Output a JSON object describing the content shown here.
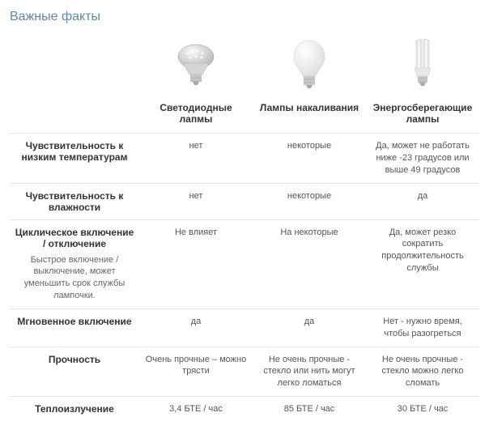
{
  "title": "Важные факты",
  "columns": [
    {
      "label": "Светодиодные лапмы",
      "icon": "led-bulb-icon"
    },
    {
      "label": "Лампы накаливания",
      "icon": "incandescent-bulb-icon"
    },
    {
      "label": "Энергосберегающие лампы",
      "icon": "cfl-bulb-icon"
    }
  ],
  "rows": [
    {
      "label": "Чувствительность к низким температурам",
      "sub": "",
      "cells": [
        "нет",
        "некоторые",
        "Да, может не работать ниже -23 градусов или выше 49 градусов"
      ]
    },
    {
      "label": "Чувствительность к влажности",
      "sub": "",
      "cells": [
        "нет",
        "некоторые",
        "да"
      ]
    },
    {
      "label": "Циклическое включение / отключение",
      "sub": "Быстрое включение / выключение, может уменьшить срок службы лампочки.",
      "cells": [
        "Не влияет",
        "На некоторые",
        "Да, может резко сократить продолжительность службы"
      ]
    },
    {
      "label": "Мгновенное включение",
      "sub": "",
      "cells": [
        "да",
        "да",
        "Нет - нужно время, чтобы разогреться"
      ]
    },
    {
      "label": "Прочность",
      "sub": "",
      "cells": [
        "Очень прочные – можно трясти",
        "Не очень прочные - стекло или нить могут легко ломаться",
        "Не очень прочные - стекло можно легко сломать"
      ]
    },
    {
      "label": "Теплоизлучение",
      "sub": "",
      "cells": [
        "3,4 БТЕ / час",
        "85 БТЕ / час",
        "30 БТЕ / час"
      ]
    }
  ],
  "colors": {
    "title": "#5b89b8",
    "border": "#e4e4e4",
    "text": "#444444",
    "subtext": "#666666"
  }
}
